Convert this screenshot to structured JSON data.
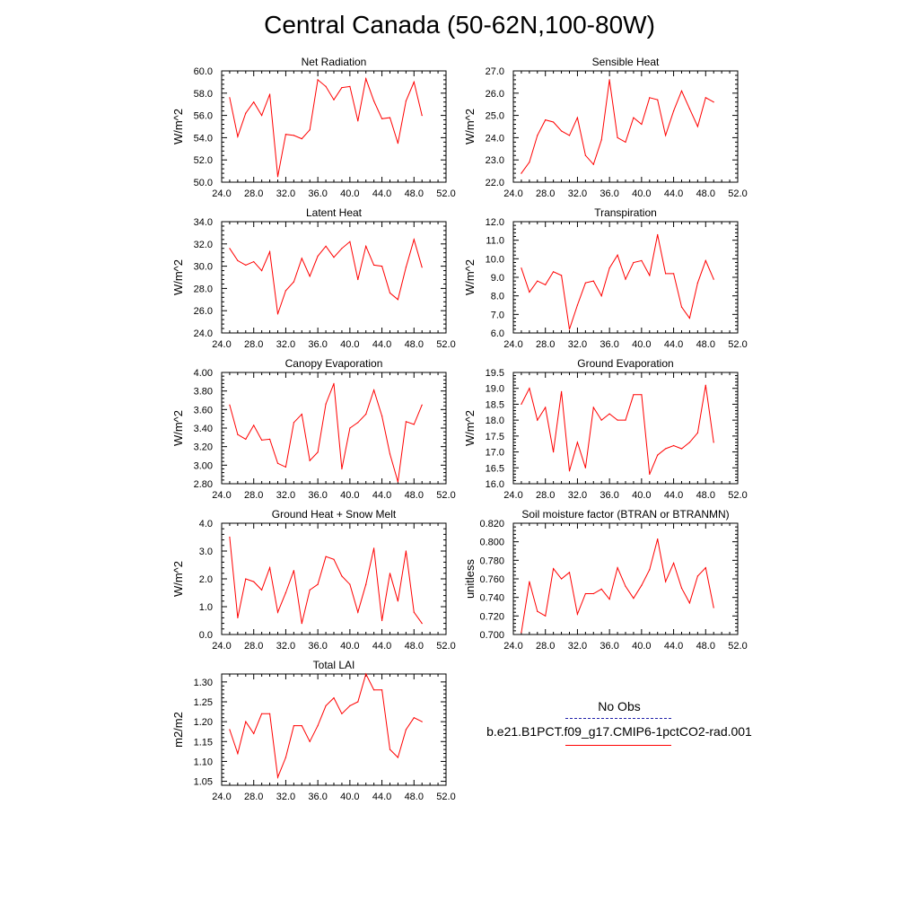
{
  "title": "Central Canada (50-62N,100-80W)",
  "legend": {
    "obs_label": "No Obs",
    "obs_color": "#2222aa",
    "model_label": "b.e21.B1PCT.f09_g17.CMIP6-1pctCO2-rad.001",
    "model_color": "#ff0000"
  },
  "x_ticks": [
    "24.0",
    "28.0",
    "32.0",
    "36.0",
    "40.0",
    "44.0",
    "48.0",
    "52.0"
  ],
  "chart_data": [
    {
      "type": "line",
      "title": "Net Radiation",
      "ylabel": "W/m^2",
      "xlim": [
        24,
        52
      ],
      "ylim": [
        50,
        60
      ],
      "yticks": [
        "50.0",
        "52.0",
        "54.0",
        "56.0",
        "58.0",
        "60.0"
      ],
      "series": [
        {
          "x": [
            25,
            26,
            27,
            28,
            29,
            30,
            31,
            32,
            33,
            34,
            35,
            36,
            37,
            38,
            39,
            40,
            41,
            42,
            43,
            44,
            45,
            46,
            47,
            48,
            49
          ],
          "values": [
            57.6,
            54.1,
            56.2,
            57.2,
            56.0,
            57.9,
            50.5,
            54.3,
            54.2,
            53.9,
            54.7,
            59.2,
            58.6,
            57.4,
            58.5,
            58.6,
            55.5,
            59.3,
            57.3,
            55.7,
            55.8,
            53.5,
            57.3,
            59.0,
            56.0
          ]
        }
      ]
    },
    {
      "type": "line",
      "title": "Sensible Heat",
      "ylabel": "W/m^2",
      "xlim": [
        24,
        52
      ],
      "ylim": [
        22,
        27
      ],
      "yticks": [
        "22.0",
        "23.0",
        "24.0",
        "25.0",
        "26.0",
        "27.0"
      ],
      "series": [
        {
          "x": [
            25,
            26,
            27,
            28,
            29,
            30,
            31,
            32,
            33,
            34,
            35,
            36,
            37,
            38,
            39,
            40,
            41,
            42,
            43,
            44,
            45,
            46,
            47,
            48,
            49
          ],
          "values": [
            22.4,
            22.9,
            24.1,
            24.8,
            24.7,
            24.3,
            24.1,
            24.9,
            23.2,
            22.8,
            23.9,
            26.6,
            24.0,
            23.8,
            24.9,
            24.6,
            25.8,
            25.7,
            24.1,
            25.2,
            26.1,
            25.3,
            24.5,
            25.8,
            25.6
          ]
        }
      ]
    },
    {
      "type": "line",
      "title": "Latent Heat",
      "ylabel": "W/m^2",
      "xlim": [
        24,
        52
      ],
      "ylim": [
        24,
        34
      ],
      "yticks": [
        "24.0",
        "26.0",
        "28.0",
        "30.0",
        "32.0",
        "34.0"
      ],
      "series": [
        {
          "x": [
            25,
            26,
            27,
            28,
            29,
            30,
            31,
            32,
            33,
            34,
            35,
            36,
            37,
            38,
            39,
            40,
            41,
            42,
            43,
            44,
            45,
            46,
            47,
            48,
            49
          ],
          "values": [
            31.6,
            30.5,
            30.1,
            30.4,
            29.6,
            31.3,
            25.7,
            27.8,
            28.6,
            30.7,
            29.1,
            30.9,
            31.8,
            30.8,
            31.6,
            32.2,
            28.8,
            31.8,
            30.1,
            30.0,
            27.6,
            27.0,
            29.9,
            32.4,
            29.9
          ]
        }
      ]
    },
    {
      "type": "line",
      "title": "Transpiration",
      "ylabel": "W/m^2",
      "xlim": [
        24,
        52
      ],
      "ylim": [
        6,
        12
      ],
      "yticks": [
        "6.0",
        "7.0",
        "8.0",
        "9.0",
        "10.0",
        "11.0",
        "12.0"
      ],
      "series": [
        {
          "x": [
            25,
            26,
            27,
            28,
            29,
            30,
            31,
            32,
            33,
            34,
            35,
            36,
            37,
            38,
            39,
            40,
            41,
            42,
            43,
            44,
            45,
            46,
            47,
            48,
            49
          ],
          "values": [
            9.5,
            8.2,
            8.8,
            8.6,
            9.3,
            9.1,
            6.2,
            7.5,
            8.7,
            8.8,
            8.0,
            9.5,
            10.2,
            8.9,
            9.8,
            9.9,
            9.1,
            11.3,
            9.2,
            9.2,
            7.4,
            6.8,
            8.7,
            9.9,
            8.9
          ]
        }
      ]
    },
    {
      "type": "line",
      "title": "Canopy Evaporation",
      "ylabel": "W/m^2",
      "xlim": [
        24,
        52
      ],
      "ylim": [
        2.8,
        4.0
      ],
      "yticks": [
        "2.80",
        "3.00",
        "3.20",
        "3.40",
        "3.60",
        "3.80",
        "4.00"
      ],
      "series": [
        {
          "x": [
            25,
            26,
            27,
            28,
            29,
            30,
            31,
            32,
            33,
            34,
            35,
            36,
            37,
            38,
            39,
            40,
            41,
            42,
            43,
            44,
            45,
            46,
            47,
            48,
            49
          ],
          "values": [
            3.65,
            3.33,
            3.28,
            3.43,
            3.27,
            3.28,
            3.02,
            2.98,
            3.46,
            3.55,
            3.05,
            3.14,
            3.66,
            3.88,
            2.96,
            3.4,
            3.46,
            3.55,
            3.81,
            3.53,
            3.12,
            2.82,
            3.47,
            3.44,
            3.65
          ]
        }
      ]
    },
    {
      "type": "line",
      "title": "Ground Evaporation",
      "ylabel": "W/m^2",
      "xlim": [
        24,
        52
      ],
      "ylim": [
        16,
        19.5
      ],
      "yticks": [
        "16.0",
        "16.5",
        "17.0",
        "17.5",
        "18.0",
        "18.5",
        "19.0",
        "19.5"
      ],
      "series": [
        {
          "x": [
            25,
            26,
            27,
            28,
            29,
            30,
            31,
            32,
            33,
            34,
            35,
            36,
            37,
            38,
            39,
            40,
            41,
            42,
            43,
            44,
            45,
            46,
            47,
            48,
            49
          ],
          "values": [
            18.5,
            19.0,
            18.0,
            18.4,
            17.0,
            18.9,
            16.4,
            17.3,
            16.5,
            18.4,
            18.0,
            18.2,
            18.0,
            18.0,
            18.8,
            18.8,
            16.3,
            16.9,
            17.1,
            17.2,
            17.1,
            17.3,
            17.6,
            19.1,
            17.3
          ]
        }
      ]
    },
    {
      "type": "line",
      "title": "Ground Heat + Snow Melt",
      "ylabel": "W/m^2",
      "xlim": [
        24,
        52
      ],
      "ylim": [
        0,
        4
      ],
      "yticks": [
        "0.0",
        "1.0",
        "2.0",
        "3.0",
        "4.0"
      ],
      "series": [
        {
          "x": [
            25,
            26,
            27,
            28,
            29,
            30,
            31,
            32,
            33,
            34,
            35,
            36,
            37,
            38,
            39,
            40,
            41,
            42,
            43,
            44,
            45,
            46,
            47,
            48,
            49
          ],
          "values": [
            3.5,
            0.6,
            2.0,
            1.9,
            1.6,
            2.4,
            0.8,
            1.5,
            2.3,
            0.4,
            1.6,
            1.8,
            2.8,
            2.7,
            2.1,
            1.8,
            0.8,
            1.8,
            3.1,
            0.5,
            2.2,
            1.2,
            3.0,
            0.8,
            0.4
          ]
        }
      ]
    },
    {
      "type": "line",
      "title": "Soil moisture factor (BTRAN or BTRANMN)",
      "ylabel": "unitless",
      "xlim": [
        24,
        52
      ],
      "ylim": [
        0.7,
        0.82
      ],
      "yticks": [
        "0.700",
        "0.720",
        "0.740",
        "0.760",
        "0.780",
        "0.800",
        "0.820"
      ],
      "series": [
        {
          "x": [
            25,
            26,
            27,
            28,
            29,
            30,
            31,
            32,
            33,
            34,
            35,
            36,
            37,
            38,
            39,
            40,
            41,
            42,
            43,
            44,
            45,
            46,
            47,
            48,
            49
          ],
          "values": [
            0.702,
            0.757,
            0.725,
            0.72,
            0.771,
            0.76,
            0.767,
            0.722,
            0.744,
            0.744,
            0.749,
            0.738,
            0.772,
            0.752,
            0.739,
            0.753,
            0.77,
            0.803,
            0.757,
            0.777,
            0.75,
            0.734,
            0.763,
            0.772,
            0.729
          ]
        }
      ]
    },
    {
      "type": "line",
      "title": "Total LAI",
      "ylabel": "m2/m2",
      "xlim": [
        24,
        52
      ],
      "ylim": [
        1.04,
        1.32
      ],
      "yticks": [
        "1.05",
        "1.10",
        "1.15",
        "1.20",
        "1.25",
        "1.30"
      ],
      "series": [
        {
          "x": [
            25,
            26,
            27,
            28,
            29,
            30,
            31,
            32,
            33,
            34,
            35,
            36,
            37,
            38,
            39,
            40,
            41,
            42,
            43,
            44,
            45,
            46,
            47,
            48,
            49
          ],
          "values": [
            1.18,
            1.12,
            1.2,
            1.17,
            1.22,
            1.22,
            1.06,
            1.11,
            1.19,
            1.19,
            1.15,
            1.19,
            1.24,
            1.26,
            1.22,
            1.24,
            1.25,
            1.32,
            1.28,
            1.28,
            1.13,
            1.11,
            1.18,
            1.21,
            1.2
          ]
        }
      ]
    }
  ]
}
